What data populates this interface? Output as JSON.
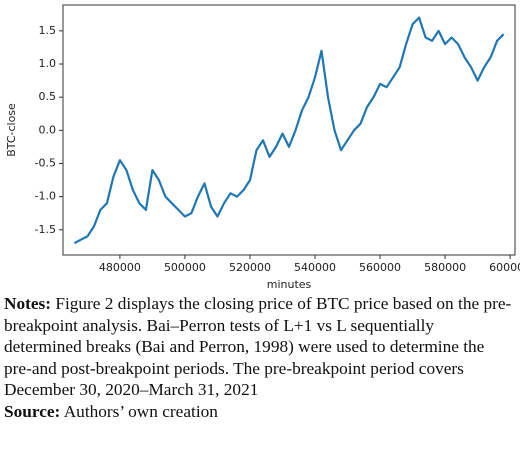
{
  "chart_data": {
    "type": "line",
    "x_label": "minutes",
    "y_label": "BTC-close",
    "x": [
      466000,
      468000,
      470000,
      472000,
      474000,
      476000,
      478000,
      480000,
      482000,
      484000,
      486000,
      488000,
      490000,
      492000,
      494000,
      496000,
      498000,
      500000,
      502000,
      504000,
      506000,
      508000,
      510000,
      512000,
      514000,
      516000,
      518000,
      520000,
      522000,
      524000,
      526000,
      528000,
      530000,
      532000,
      534000,
      536000,
      538000,
      540000,
      542000,
      544000,
      546000,
      548000,
      550000,
      552000,
      554000,
      556000,
      558000,
      560000,
      562000,
      564000,
      566000,
      568000,
      570000,
      572000,
      574000,
      576000,
      578000,
      580000,
      582000,
      584000,
      586000,
      588000,
      590000,
      592000,
      594000,
      596000,
      598000
    ],
    "series": [
      {
        "color": "#1f77b4",
        "values": [
          -1.7,
          -1.65,
          -1.6,
          -1.45,
          -1.2,
          -1.1,
          -0.7,
          -0.45,
          -0.6,
          -0.9,
          -1.1,
          -1.2,
          -0.6,
          -0.75,
          -1.0,
          -1.1,
          -1.2,
          -1.3,
          -1.25,
          -1.0,
          -0.8,
          -1.15,
          -1.3,
          -1.1,
          -0.95,
          -1.0,
          -0.9,
          -0.75,
          -0.3,
          -0.15,
          -0.4,
          -0.25,
          -0.05,
          -0.25,
          0.0,
          0.3,
          0.5,
          0.8,
          1.2,
          0.5,
          0.0,
          -0.3,
          -0.15,
          0.0,
          0.1,
          0.35,
          0.5,
          0.7,
          0.65,
          0.8,
          0.95,
          1.3,
          1.6,
          1.7,
          1.4,
          1.35,
          1.5,
          1.3,
          1.4,
          1.3,
          1.1,
          0.95,
          0.75,
          0.95,
          1.1,
          1.35,
          1.45
        ]
      }
    ],
    "xlim": [
      462500,
      601500
    ],
    "ylim": [
      -1.88,
      1.89
    ],
    "xticks": [
      480000,
      500000,
      520000,
      540000,
      560000,
      580000,
      600000
    ],
    "yticks": [
      {
        "value": -1.5,
        "label": "-1.5"
      },
      {
        "value": -1,
        "label": "-1.0"
      },
      -0.5,
      {
        "value": 0,
        "label": "0.0"
      },
      0.5,
      {
        "value": 1,
        "label": "1.0"
      },
      1.5
    ]
  },
  "caption": {
    "notes_label": "Notes:",
    "notes_text": " Figure 2 displays the closing price of BTC price based on the pre-breakpoint analysis. Bai–Perron tests of L+1 vs L sequentially determined breaks (Bai and Perron, 1998) were used to determine the pre-and post-breakpoint periods. The pre-breakpoint period covers December 30, 2020–March 31, 2021",
    "source_label": "Source:",
    "source_text": " Authors’ own creation"
  }
}
